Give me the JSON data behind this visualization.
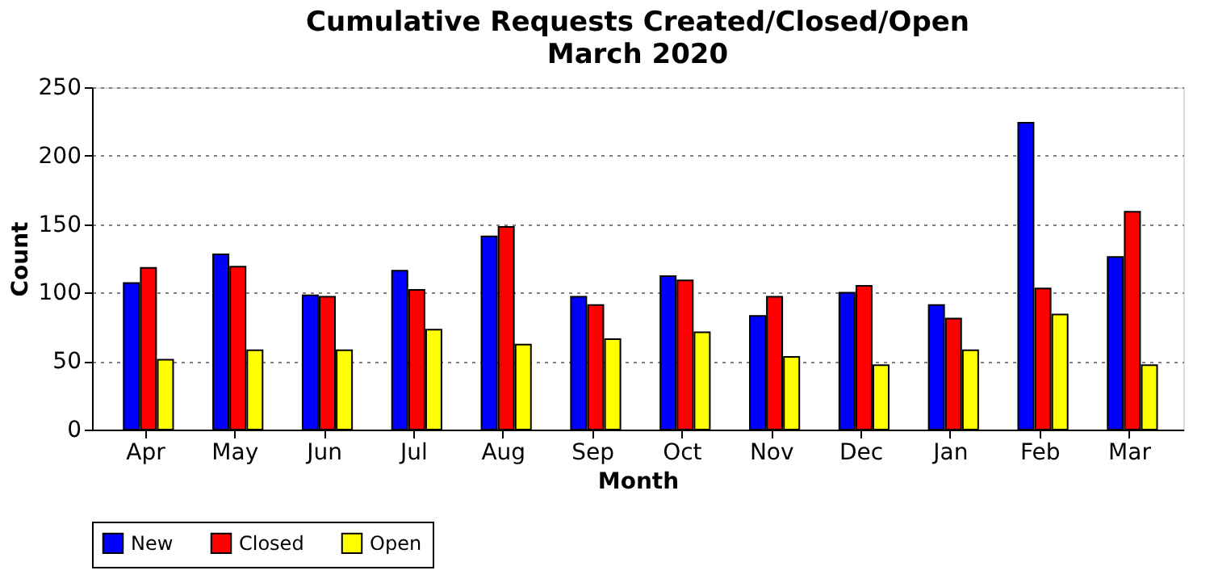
{
  "chart_data": {
    "type": "bar",
    "title": "Cumulative Requests Created/Closed/Open",
    "subtitle": "March 2020",
    "xlabel": "Month",
    "ylabel": "Count",
    "categories": [
      "Apr",
      "May",
      "Jun",
      "Jul",
      "Aug",
      "Sep",
      "Oct",
      "Nov",
      "Dec",
      "Jan",
      "Feb",
      "Mar"
    ],
    "series": [
      {
        "name": "New",
        "color": "#0000ff",
        "values": [
          107,
          128,
          98,
          116,
          141,
          97,
          112,
          83,
          100,
          91,
          224,
          126
        ]
      },
      {
        "name": "Closed",
        "color": "#ff0000",
        "values": [
          118,
          119,
          97,
          102,
          148,
          91,
          109,
          97,
          105,
          81,
          103,
          159
        ]
      },
      {
        "name": "Open",
        "color": "#ffff00",
        "values": [
          51,
          58,
          58,
          73,
          62,
          66,
          71,
          53,
          47,
          58,
          84,
          47
        ]
      }
    ],
    "ylim": [
      0,
      250
    ],
    "yticks": [
      0,
      50,
      100,
      150,
      200,
      250
    ],
    "grid": "y",
    "legend": "bottom"
  }
}
